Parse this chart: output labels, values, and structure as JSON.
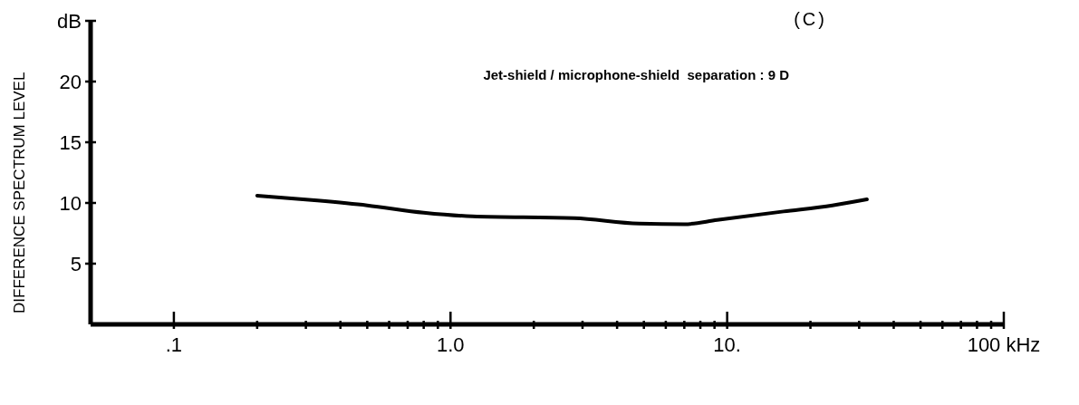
{
  "chart_data": {
    "type": "line",
    "ylabel": "DIFFERENCE SPECTRUM LEVEL",
    "annotations": [
      "(C)",
      "Jet-shield / microphone-shield  separation : 9 D"
    ],
    "log": "x",
    "xlim": [
      0.05,
      100
    ],
    "ylim": [
      0,
      25
    ],
    "xticks": [
      {
        "value": 0.1,
        "label": ".1"
      },
      {
        "value": 0.2,
        "label": null
      },
      {
        "value": 0.3,
        "label": null
      },
      {
        "value": 0.4,
        "label": null
      },
      {
        "value": 0.5,
        "label": null
      },
      {
        "value": 0.6,
        "label": null
      },
      {
        "value": 0.7,
        "label": null
      },
      {
        "value": 0.8,
        "label": null
      },
      {
        "value": 0.9,
        "label": null
      },
      {
        "value": 1,
        "label": "1.0"
      },
      {
        "value": 2,
        "label": null
      },
      {
        "value": 3,
        "label": null
      },
      {
        "value": 4,
        "label": null
      },
      {
        "value": 5,
        "label": null
      },
      {
        "value": 6,
        "label": null
      },
      {
        "value": 7,
        "label": null
      },
      {
        "value": 8,
        "label": null
      },
      {
        "value": 9,
        "label": null
      },
      {
        "value": 10,
        "label": "10."
      },
      {
        "value": 20,
        "label": null
      },
      {
        "value": 30,
        "label": null
      },
      {
        "value": 40,
        "label": null
      },
      {
        "value": 50,
        "label": null
      },
      {
        "value": 60,
        "label": null
      },
      {
        "value": 70,
        "label": null
      },
      {
        "value": 80,
        "label": null
      },
      {
        "value": 90,
        "label": null
      },
      {
        "value": 100,
        "label": "100 kHz"
      }
    ],
    "yticks": [
      5,
      10,
      15,
      20,
      {
        "value": 25,
        "label": "dB"
      }
    ],
    "marker": "none",
    "line_style": "solid",
    "series": [
      {
        "color": "#000000",
        "x": [
          0.2,
          0.33,
          0.5,
          0.8,
          1.2,
          2.8,
          4.8,
          7,
          9.2,
          16,
          24,
          32
        ],
        "values": [
          10.6,
          10.2,
          9.8,
          9.2,
          8.9,
          8.75,
          8.3,
          8.25,
          8.6,
          9.3,
          9.8,
          10.3
        ]
      }
    ]
  }
}
